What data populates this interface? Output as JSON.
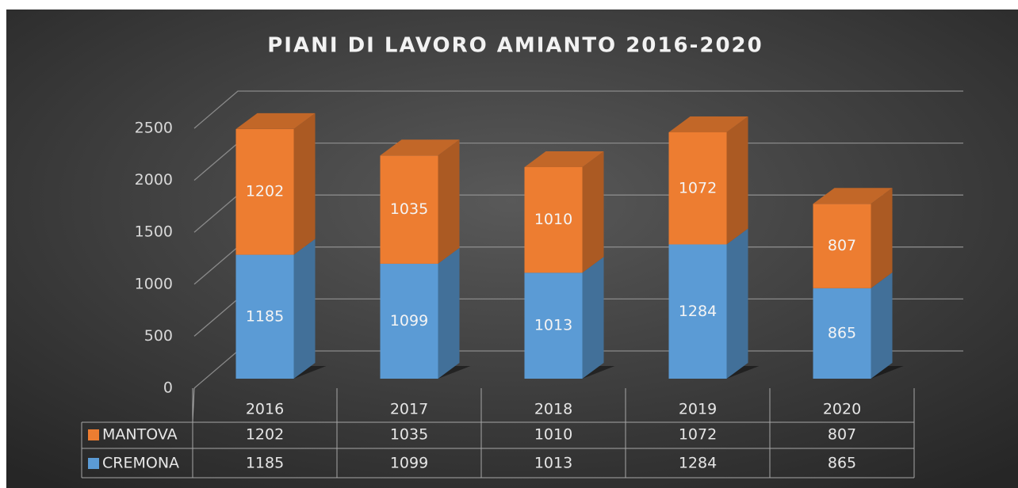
{
  "chart_data": {
    "type": "bar3d_stacked",
    "title": "PIANI DI LAVORO AMIANTO 2016-2020",
    "categories": [
      "2016",
      "2017",
      "2018",
      "2019",
      "2020"
    ],
    "series": [
      {
        "name": "CREMONA",
        "color": "#5b9bd5",
        "values": [
          1185,
          1099,
          1013,
          1284,
          865
        ]
      },
      {
        "name": "MANTOVA",
        "color": "#ed7d31",
        "values": [
          1202,
          1035,
          1010,
          1072,
          807
        ]
      }
    ],
    "ylim": [
      0,
      2500
    ],
    "yticks": [
      0,
      500,
      1000,
      1500,
      2000,
      2500
    ],
    "grid": true,
    "data_table": true
  }
}
